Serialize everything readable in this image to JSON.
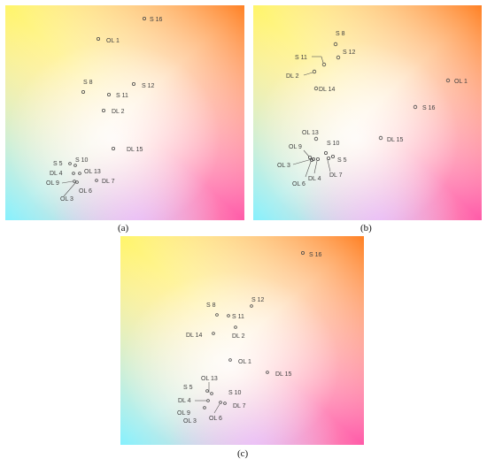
{
  "figure": {
    "panels": [
      {
        "caption": "(a)",
        "points": {
          "S16": "S 16",
          "OL1": "OL 1",
          "S8": "S 8",
          "S12": "S 12",
          "S11": "S 11",
          "DL2": "DL 2",
          "DL15": "DL 15",
          "S5": "S 5",
          "S10": "S 10",
          "DL4": "DL 4",
          "OL13": "OL 13",
          "OL9": "OL 9",
          "OL6": "OL 6",
          "DL7": "DL 7",
          "OL3": "OL 3"
        }
      },
      {
        "caption": "(b)",
        "points": {
          "S8": "S 8",
          "S12": "S 12",
          "S11": "S 11",
          "DL2": "DL 2",
          "DL14": "DL 14",
          "OL1": "OL 1",
          "S16": "S 16",
          "OL13": "OL 13",
          "DL15": "DL 15",
          "OL9": "OL 9",
          "S10": "S 10",
          "OL3": "OL 3",
          "S5": "S 5",
          "DL7": "DL 7",
          "DL4": "DL 4",
          "OL6": "OL 6"
        }
      },
      {
        "caption": "(c)",
        "points": {
          "S16": "S 16",
          "S12": "S 12",
          "S8": "S 8",
          "S11": "S 11",
          "DL14": "DL 14",
          "DL2": "DL 2",
          "OL1": "OL 1",
          "DL15": "DL 15",
          "OL13": "OL 13",
          "S5": "S 5",
          "S10": "S 10",
          "DL4": "DL 4",
          "OL9": "OL 9",
          "DL7": "DL 7",
          "OL3": "OL 3",
          "OL6": "OL 6"
        }
      }
    ]
  }
}
